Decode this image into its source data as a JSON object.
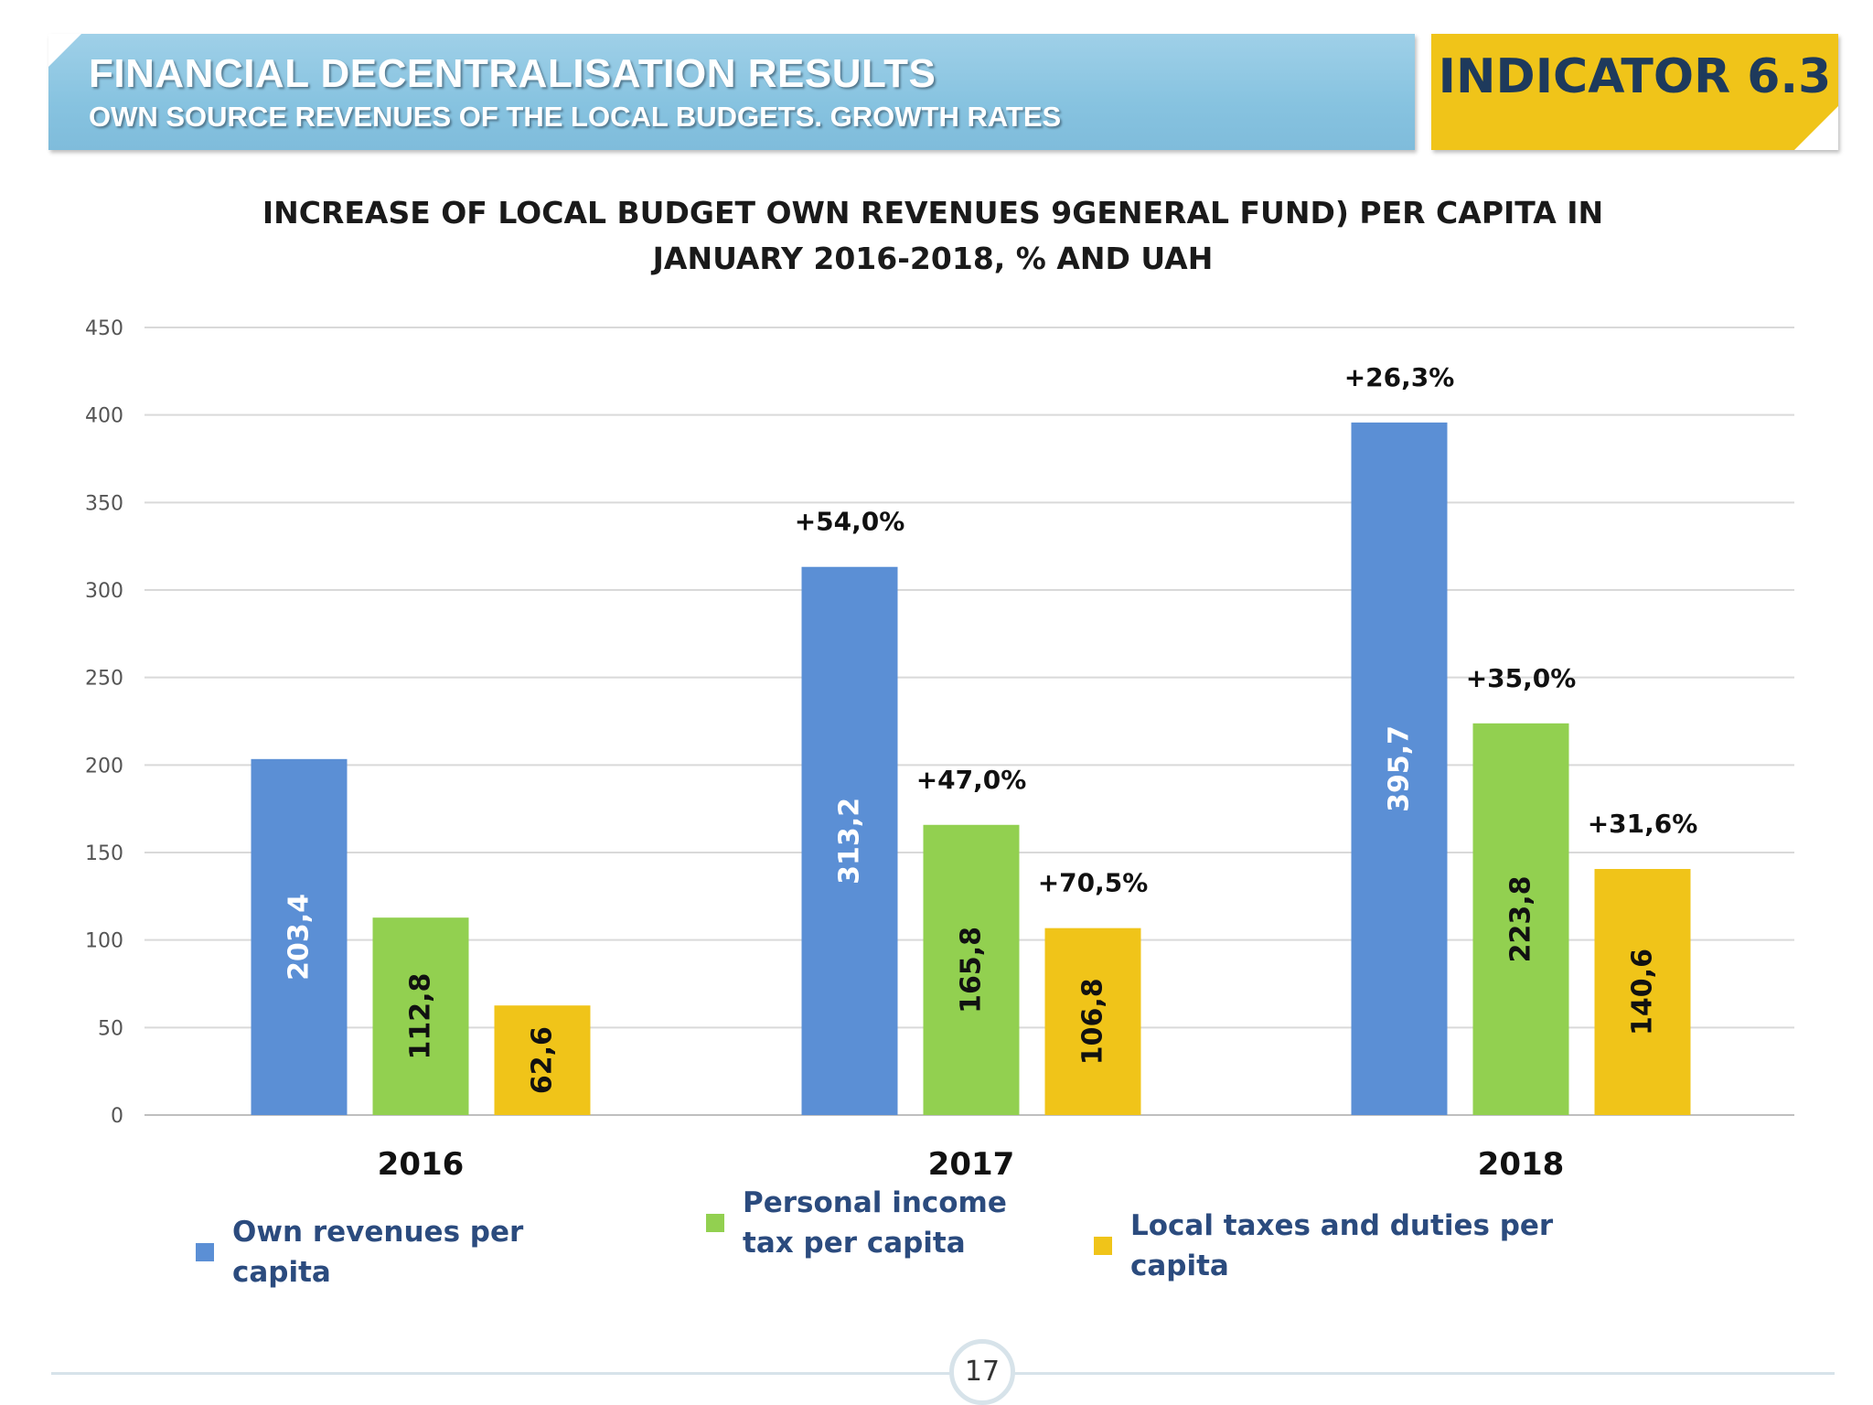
{
  "header": {
    "title": "FINANCIAL DECENTRALISATION RESULTS",
    "subtitle": "OWN SOURCE REVENUES OF THE LOCAL BUDGETS. GROWTH RATES",
    "indicator": "INDICATOR 6.3"
  },
  "page_number": "17",
  "colors": {
    "own_revenues": "#5b8fd5",
    "personal_income_tax": "#92d050",
    "local_taxes": "#f0c419",
    "header_blue": "#8cc6e2",
    "indicator_yellow": "#f0c419"
  },
  "chart_data": {
    "type": "bar",
    "title": "INCREASE OF LOCAL BUDGET OWN REVENUES 9GENERAL FUND) PER CAPITA IN JANUARY 2016-2018, % AND UAH",
    "categories": [
      "2016",
      "2017",
      "2018"
    ],
    "ylim": [
      0,
      450
    ],
    "yticks": [
      0,
      50,
      100,
      150,
      200,
      250,
      300,
      350,
      400,
      450
    ],
    "grid": true,
    "legend_position": "bottom",
    "series": [
      {
        "name": "Own revenues per capita",
        "values": [
          203.4,
          313.2,
          395.7
        ],
        "labels": [
          "203,4",
          "313,2",
          "395,7"
        ],
        "growth": [
          "",
          "+54,0%",
          "+26,3%"
        ]
      },
      {
        "name": "Personal income tax per capita",
        "values": [
          112.8,
          165.8,
          223.8
        ],
        "labels": [
          "112,8",
          "165,8",
          "223,8"
        ],
        "growth": [
          "",
          "+47,0%",
          "+35,0%"
        ]
      },
      {
        "name": "Local taxes and duties per capita",
        "values": [
          62.6,
          106.8,
          140.6
        ],
        "labels": [
          "62,6",
          "106,8",
          "140,6"
        ],
        "growth": [
          "",
          "+70,5%",
          "+31,6%"
        ]
      }
    ]
  }
}
